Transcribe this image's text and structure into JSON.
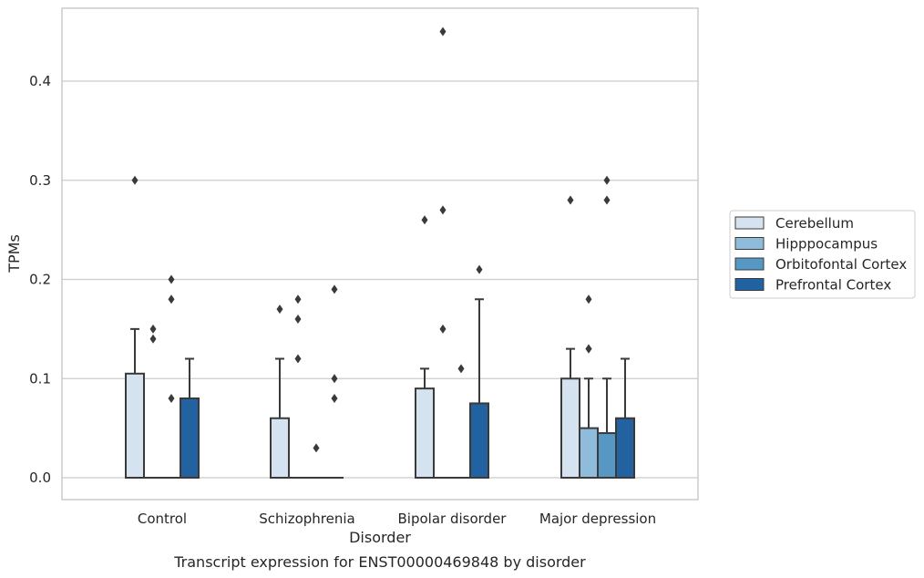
{
  "chart_data": {
    "type": "box",
    "title": "",
    "caption": "Transcript expression for ENST00000469848 by disorder",
    "xlabel": "Disorder",
    "ylabel": "TPMs",
    "ylim": [
      -0.022,
      0.475
    ],
    "yticks": [
      0.0,
      0.1,
      0.2,
      0.3,
      0.4
    ],
    "ytick_labels": [
      "0.0",
      "0.1",
      "0.2",
      "0.3",
      "0.4"
    ],
    "grid": "horizontal",
    "legend_position": "right",
    "categories": [
      "Control",
      "Schizophrenia",
      "Bipolar disorder",
      "Major depression"
    ],
    "series": [
      {
        "name": "Cerebellum",
        "color": "#d5e3f0",
        "boxes": [
          {
            "q1": 0.0,
            "median": 0.0,
            "q3": 0.105,
            "whisker_low": 0.0,
            "whisker_high": 0.15,
            "outliers": [
              0.3
            ]
          },
          {
            "q1": 0.0,
            "median": 0.0,
            "q3": 0.06,
            "whisker_low": 0.0,
            "whisker_high": 0.12,
            "outliers": [
              0.17
            ]
          },
          {
            "q1": 0.0,
            "median": 0.0,
            "q3": 0.09,
            "whisker_low": 0.0,
            "whisker_high": 0.11,
            "outliers": [
              0.26
            ]
          },
          {
            "q1": 0.0,
            "median": 0.0,
            "q3": 0.1,
            "whisker_low": 0.0,
            "whisker_high": 0.13,
            "outliers": [
              0.28
            ]
          }
        ]
      },
      {
        "name": "Hipppocampus",
        "color": "#8fbcda",
        "boxes": [
          {
            "q1": 0.0,
            "median": 0.0,
            "q3": 0.0,
            "whisker_low": 0.0,
            "whisker_high": 0.0,
            "outliers": [
              0.14,
              0.15
            ]
          },
          {
            "q1": 0.0,
            "median": 0.0,
            "q3": 0.0,
            "whisker_low": 0.0,
            "whisker_high": 0.0,
            "outliers": [
              0.12,
              0.16,
              0.18
            ]
          },
          {
            "q1": 0.0,
            "median": 0.0,
            "q3": 0.0,
            "whisker_low": 0.0,
            "whisker_high": 0.0,
            "outliers": [
              0.15,
              0.27,
              0.45
            ]
          },
          {
            "q1": 0.0,
            "median": 0.0,
            "q3": 0.05,
            "whisker_low": 0.0,
            "whisker_high": 0.1,
            "outliers": [
              0.13,
              0.13,
              0.18
            ]
          }
        ]
      },
      {
        "name": "Orbitofontal Cortex",
        "color": "#5697c4",
        "boxes": [
          {
            "q1": 0.0,
            "median": 0.0,
            "q3": 0.0,
            "whisker_low": 0.0,
            "whisker_high": 0.0,
            "outliers": [
              0.08,
              0.18,
              0.2
            ]
          },
          {
            "q1": 0.0,
            "median": 0.0,
            "q3": 0.0,
            "whisker_low": 0.0,
            "whisker_high": 0.0,
            "outliers": [
              0.03
            ]
          },
          {
            "q1": 0.0,
            "median": 0.0,
            "q3": 0.0,
            "whisker_low": 0.0,
            "whisker_high": 0.0,
            "outliers": [
              0.11
            ]
          },
          {
            "q1": 0.0,
            "median": 0.0,
            "q3": 0.045,
            "whisker_low": 0.0,
            "whisker_high": 0.1,
            "outliers": [
              0.28,
              0.3
            ]
          }
        ]
      },
      {
        "name": "Prefrontal Cortex",
        "color": "#2362a0",
        "boxes": [
          {
            "q1": 0.0,
            "median": 0.0,
            "q3": 0.08,
            "whisker_low": 0.0,
            "whisker_high": 0.12,
            "outliers": []
          },
          {
            "q1": 0.0,
            "median": 0.0,
            "q3": 0.0,
            "whisker_low": 0.0,
            "whisker_high": 0.0,
            "outliers": [
              0.08,
              0.1,
              0.19
            ]
          },
          {
            "q1": 0.0,
            "median": 0.0,
            "q3": 0.075,
            "whisker_low": 0.0,
            "whisker_high": 0.18,
            "outliers": [
              0.21
            ]
          },
          {
            "q1": 0.0,
            "median": 0.0,
            "q3": 0.06,
            "whisker_low": 0.0,
            "whisker_high": 0.12,
            "outliers": []
          }
        ]
      }
    ]
  }
}
